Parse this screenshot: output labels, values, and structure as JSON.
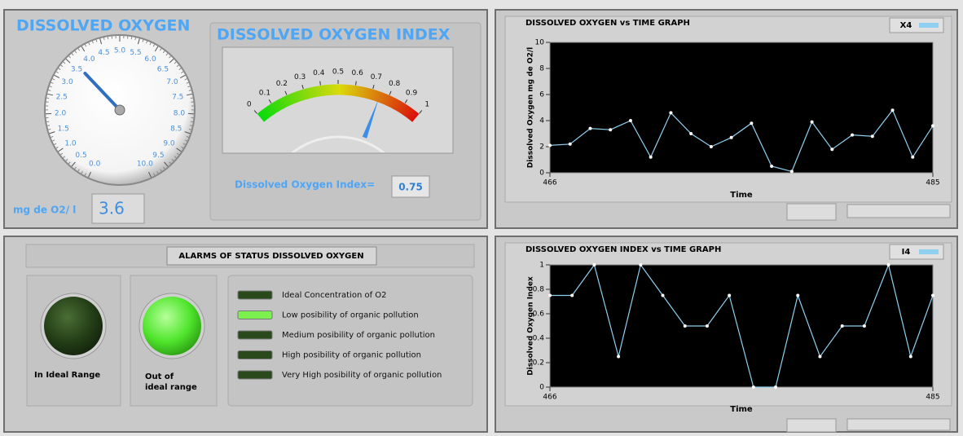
{
  "oxygen_gauge": {
    "title": "DISSOLVED OXYGEN",
    "unit_label": "mg de O2/ l",
    "value": 3.6,
    "ticks": [
      {
        "value": 0,
        "label": "0.0"
      },
      0.5,
      {
        "value": 1,
        "label": "1.0"
      },
      1.5,
      {
        "value": 2,
        "label": "2.0"
      },
      2.5,
      {
        "value": 3,
        "label": "3.0"
      },
      3.5,
      {
        "value": 4,
        "label": "4.0"
      },
      4.5,
      {
        "value": 5,
        "label": "5.0"
      },
      5.5,
      {
        "value": 6,
        "label": "6.0"
      },
      6.5,
      {
        "value": 7,
        "label": "7.0"
      },
      7.5,
      {
        "value": 8,
        "label": "8.0"
      },
      8.5,
      {
        "value": 9,
        "label": "9.0"
      },
      9.5,
      {
        "value": 10,
        "label": "10.0"
      }
    ]
  },
  "index_gauge": {
    "title": "DISSOLVED OXYGEN INDEX",
    "readout_label": "Dissolved Oxygen Index=",
    "value": 0.75,
    "ticks": [
      0,
      0.1,
      0.2,
      0.3,
      0.4,
      0.5,
      0.6,
      0.7,
      0.8,
      0.9,
      1
    ]
  },
  "alarms": {
    "title": "ALARMS OF STATUS  DISSOLVED OXYGEN",
    "leds": [
      {
        "label": "In Ideal  Range",
        "on": false
      },
      {
        "label": "Out of ideal range",
        "on": true
      }
    ],
    "indicators": [
      {
        "label": "Ideal Concentration of O2",
        "on": false
      },
      {
        "label": "Low posibility of organic pollution",
        "on": true
      },
      {
        "label": "Medium posibility of organic pollution",
        "on": false
      },
      {
        "label": "High posibility of organic pollution",
        "on": false
      },
      {
        "label": "Very High posibility of organic pollution",
        "on": false
      }
    ]
  },
  "chart_data": [
    {
      "type": "line",
      "title": "DISSOLVED OXYGEN vs TIME GRAPH",
      "x_label": "Time",
      "y_label": "Dissolved Oxygen mg de O2/l",
      "x": [
        466,
        467,
        468,
        469,
        470,
        471,
        472,
        473,
        474,
        475,
        476,
        477,
        478,
        479,
        480,
        481,
        482,
        483,
        484,
        485
      ],
      "series": [
        {
          "name": "X4",
          "color": "#8fd0f0",
          "values": [
            2.1,
            2.2,
            3.4,
            3.3,
            4.0,
            1.2,
            4.6,
            3.0,
            2.0,
            2.7,
            3.8,
            0.5,
            0.1,
            3.9,
            1.8,
            2.9,
            2.8,
            4.8,
            1.2,
            3.6
          ]
        }
      ],
      "xlim": [
        466,
        485
      ],
      "xticks": [
        466,
        485
      ],
      "ylim": [
        0,
        10
      ],
      "yticks": [
        0,
        2,
        4,
        6,
        8,
        10
      ]
    },
    {
      "type": "line",
      "title": "DISSOLVED OXYGEN INDEX vs TIME GRAPH",
      "x_label": "Time",
      "y_label": "Dissolved Oxygen Index",
      "x": [
        466,
        467.1,
        468.2,
        469.4,
        470.5,
        471.6,
        472.7,
        473.8,
        474.9,
        476.1,
        477.2,
        478.3,
        479.4,
        480.5,
        481.6,
        482.8,
        483.9,
        485
      ],
      "series": [
        {
          "name": "I4",
          "color": "#8fd0f0",
          "values": [
            0.75,
            0.75,
            1,
            0.25,
            1,
            0.75,
            0.5,
            0.5,
            0.75,
            0,
            0,
            0.75,
            0.25,
            0.5,
            0.5,
            1,
            0.25,
            0.75
          ]
        }
      ],
      "xlim": [
        466,
        485
      ],
      "xticks": [
        466,
        485
      ],
      "ylim": [
        0,
        1
      ],
      "yticks": [
        0,
        0.2,
        0.4,
        0.6,
        0.8,
        1
      ]
    }
  ]
}
